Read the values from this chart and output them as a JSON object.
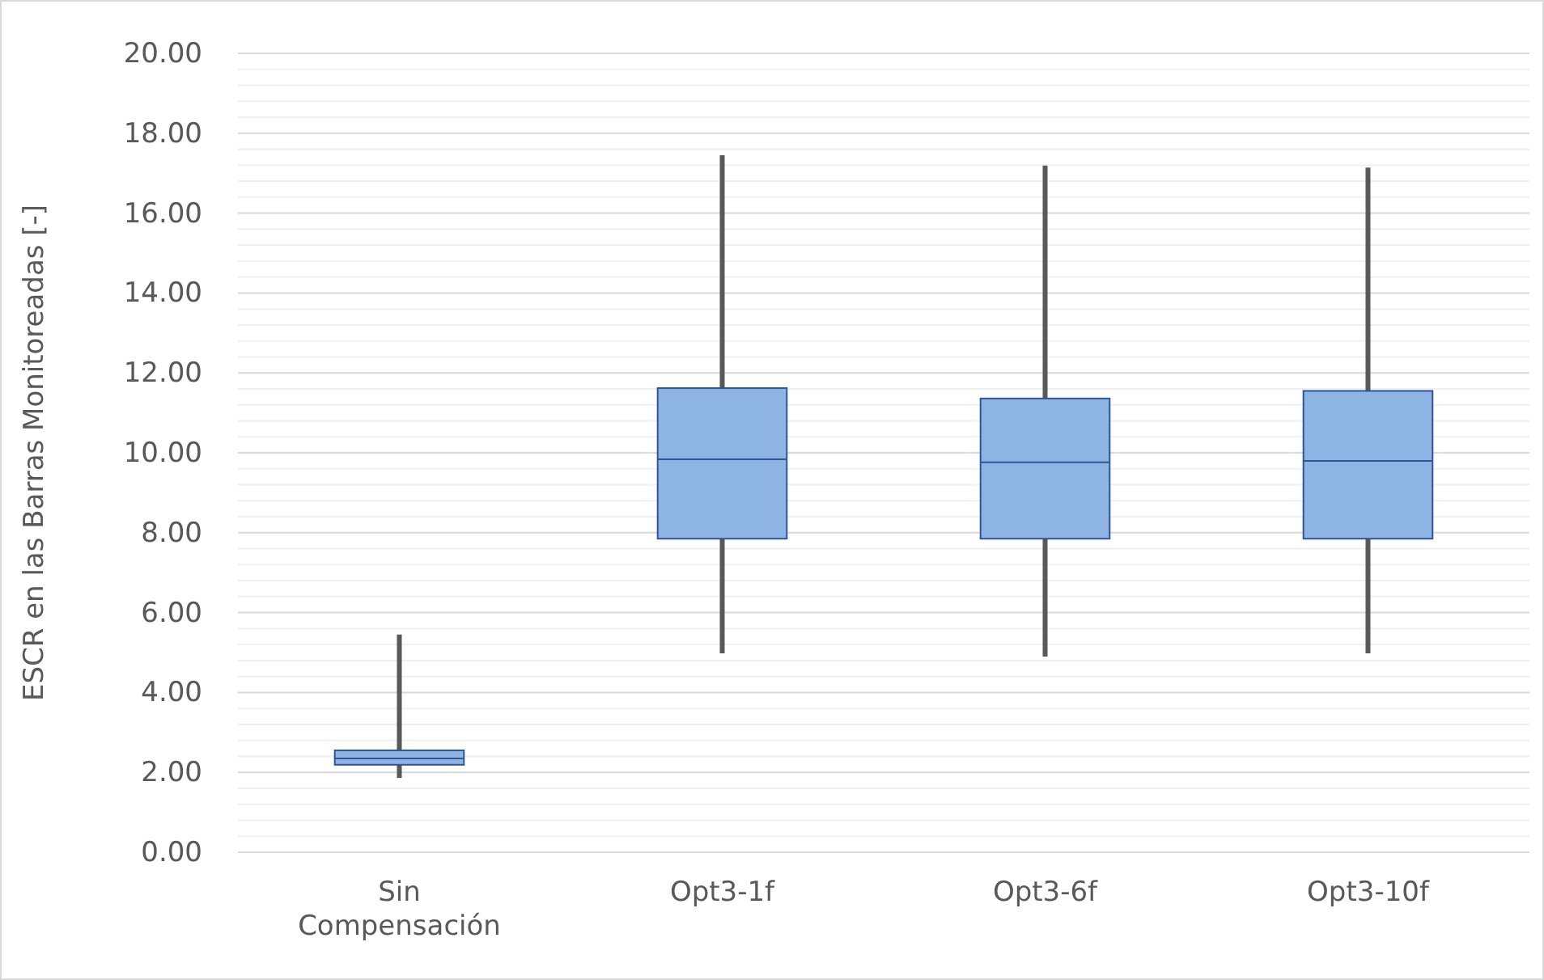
{
  "chart_data": {
    "type": "box",
    "ylabel": "ESCR en las Barras Monitoreadas [-]",
    "categories": [
      "Sin Compensación",
      "Opt3-1f",
      "Opt3-6f",
      "Opt3-10f"
    ],
    "series": [
      {
        "color": "#8eb4e3",
        "boxes": [
          {
            "low": 1.86,
            "q1": 2.19,
            "median": 2.35,
            "q3": 2.55,
            "high": 5.45
          },
          {
            "low": 4.98,
            "q1": 7.85,
            "median": 9.84,
            "q3": 11.62,
            "high": 17.45
          },
          {
            "low": 4.9,
            "q1": 7.85,
            "median": 9.76,
            "q3": 11.36,
            "high": 17.19
          },
          {
            "low": 4.98,
            "q1": 7.85,
            "median": 9.8,
            "q3": 11.55,
            "high": 17.14
          }
        ]
      }
    ],
    "ylim": [
      0,
      20
    ],
    "yticks": [
      {
        "value": 0,
        "label": "0.00"
      },
      {
        "value": 2,
        "label": "2.00"
      },
      {
        "value": 4,
        "label": "4.00"
      },
      {
        "value": 6,
        "label": "6.00"
      },
      {
        "value": 8,
        "label": "8.00"
      },
      {
        "value": 10,
        "label": "10.00"
      },
      {
        "value": 12,
        "label": "12.00"
      },
      {
        "value": 14,
        "label": "14.00"
      },
      {
        "value": 16,
        "label": "16.00"
      },
      {
        "value": 18,
        "label": "18.00"
      },
      {
        "value": 20,
        "label": "20.00"
      }
    ],
    "grid": "y"
  }
}
